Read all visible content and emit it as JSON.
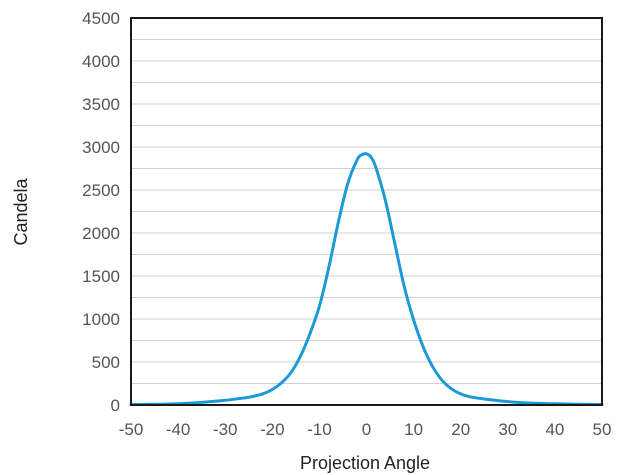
{
  "chart_data": {
    "type": "line",
    "title": "",
    "xlabel": "Projection Angle",
    "ylabel": "Candela",
    "xlim": [
      -50,
      50
    ],
    "ylim": [
      0,
      4500
    ],
    "x_ticks": [
      -50,
      -40,
      -30,
      -20,
      -10,
      0,
      10,
      20,
      30,
      40,
      50
    ],
    "y_ticks": [
      0,
      500,
      1000,
      1500,
      2000,
      2500,
      3000,
      3500,
      4000,
      4500
    ],
    "grid": "horizontal",
    "colors": {
      "line": "#1a9ad6",
      "grid": "#d0d0d0",
      "frame": "#1a1a1a"
    },
    "series": [
      {
        "x": [
          -50,
          -45,
          -40,
          -35,
          -30,
          -27,
          -25,
          -22,
          -20,
          -18,
          -16,
          -14,
          -12,
          -10,
          -8,
          -6,
          -4,
          -2,
          -1,
          0,
          1,
          2,
          4,
          6,
          8,
          10,
          12,
          14,
          16,
          18,
          20,
          22,
          25,
          30,
          35,
          40,
          45,
          50
        ],
        "y": [
          5,
          8,
          15,
          30,
          55,
          75,
          90,
          130,
          180,
          260,
          380,
          570,
          830,
          1150,
          1600,
          2120,
          2570,
          2850,
          2910,
          2920,
          2880,
          2760,
          2380,
          1880,
          1380,
          990,
          680,
          450,
          290,
          190,
          130,
          95,
          70,
          40,
          22,
          14,
          9,
          6
        ]
      }
    ]
  }
}
